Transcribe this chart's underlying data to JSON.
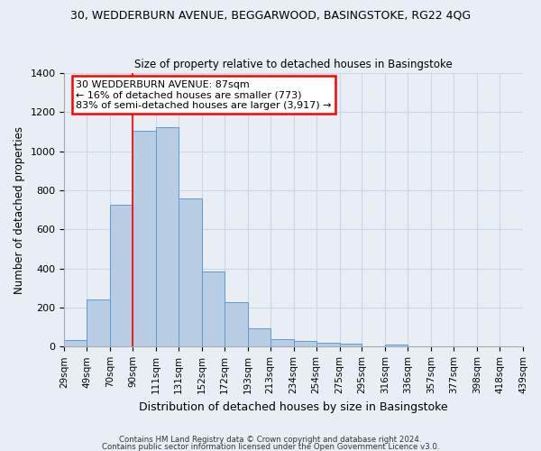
{
  "title_line1": "30, WEDDERBURN AVENUE, BEGGARWOOD, BASINGSTOKE, RG22 4QG",
  "title_line2": "Size of property relative to detached houses in Basingstoke",
  "xlabel": "Distribution of detached houses by size in Basingstoke",
  "ylabel": "Number of detached properties",
  "bin_labels": [
    "29sqm",
    "49sqm",
    "70sqm",
    "90sqm",
    "111sqm",
    "131sqm",
    "152sqm",
    "172sqm",
    "193sqm",
    "213sqm",
    "234sqm",
    "254sqm",
    "275sqm",
    "295sqm",
    "316sqm",
    "336sqm",
    "357sqm",
    "377sqm",
    "398sqm",
    "418sqm",
    "439sqm"
  ],
  "bar_values": [
    35,
    240,
    725,
    1105,
    1125,
    760,
    385,
    228,
    95,
    38,
    28,
    22,
    15,
    0,
    12,
    0,
    0,
    0,
    0,
    0
  ],
  "bar_color": "#b8cce4",
  "bar_edge_color": "#5b9bd5",
  "marker_x_label": "90sqm",
  "marker_label_line1": "30 WEDDERBURN AVENUE: 87sqm",
  "marker_label_line2": "← 16% of detached houses are smaller (773)",
  "marker_label_line3": "83% of semi-detached houses are larger (3,917) →",
  "marker_color": "#ff0000",
  "ylim": [
    0,
    1400
  ],
  "yticks": [
    0,
    200,
    400,
    600,
    800,
    1000,
    1200,
    1400
  ],
  "grid_color": "#c8d8e8",
  "background_color": "#e8eef4",
  "footer_line1": "Contains HM Land Registry data © Crown copyright and database right 2024.",
  "footer_line2": "Contains public sector information licensed under the Open Government Licence v3.0."
}
